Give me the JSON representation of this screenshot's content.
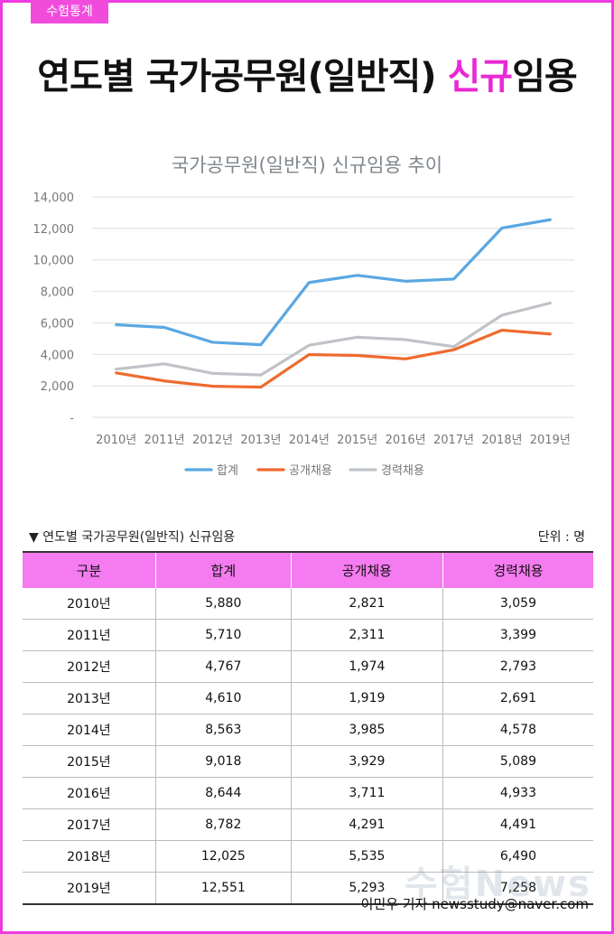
{
  "tag": "수험통계",
  "title_main": "연도별 국가공무원(일반직) ",
  "title_highlight": "신규",
  "title_end": "임용",
  "chart_data": {
    "type": "line",
    "title": "국가공무원(일반직) 신규임용 추이",
    "categories": [
      "2010년",
      "2011년",
      "2012년",
      "2013년",
      "2014년",
      "2015년",
      "2016년",
      "2017년",
      "2018년",
      "2019년"
    ],
    "series": [
      {
        "name": "합계",
        "color": "#5aa7e2",
        "values": [
          5880,
          5710,
          4767,
          4610,
          8563,
          9018,
          8644,
          8782,
          12025,
          12551
        ]
      },
      {
        "name": "공개채용",
        "color": "#ef6a2e",
        "values": [
          2821,
          2311,
          1974,
          1919,
          3985,
          3929,
          3711,
          4291,
          5535,
          5293
        ]
      },
      {
        "name": "경력채용",
        "color": "#bfc3c7",
        "values": [
          3059,
          3399,
          2793,
          2691,
          4578,
          5089,
          4933,
          4491,
          6490,
          7258
        ]
      }
    ],
    "yticks": [
      "-",
      "2,000",
      "4,000",
      "6,000",
      "8,000",
      "10,000",
      "12,000",
      "14,000"
    ],
    "ylim": [
      0,
      14000
    ],
    "grid": true,
    "legend": "bottom"
  },
  "table": {
    "caption": "▼ 연도별 국가공무원(일반직) 신규임용",
    "unit": "단위 : 명",
    "headers": [
      "구분",
      "합계",
      "공개채용",
      "경력채용"
    ],
    "rows": [
      [
        "2010년",
        "5,880",
        "2,821",
        "3,059"
      ],
      [
        "2011년",
        "5,710",
        "2,311",
        "3,399"
      ],
      [
        "2012년",
        "4,767",
        "1,974",
        "2,793"
      ],
      [
        "2013년",
        "4,610",
        "1,919",
        "2,691"
      ],
      [
        "2014년",
        "8,563",
        "3,985",
        "4,578"
      ],
      [
        "2015년",
        "9,018",
        "3,929",
        "5,089"
      ],
      [
        "2016년",
        "8,644",
        "3,711",
        "4,933"
      ],
      [
        "2017년",
        "8,782",
        "4,291",
        "4,491"
      ],
      [
        "2018년",
        "12,025",
        "5,535",
        "6,490"
      ],
      [
        "2019년",
        "12,551",
        "5,293",
        "7,258"
      ]
    ]
  },
  "watermark": "수험News",
  "byline": "이민우 기자 newsstudy@naver.com"
}
